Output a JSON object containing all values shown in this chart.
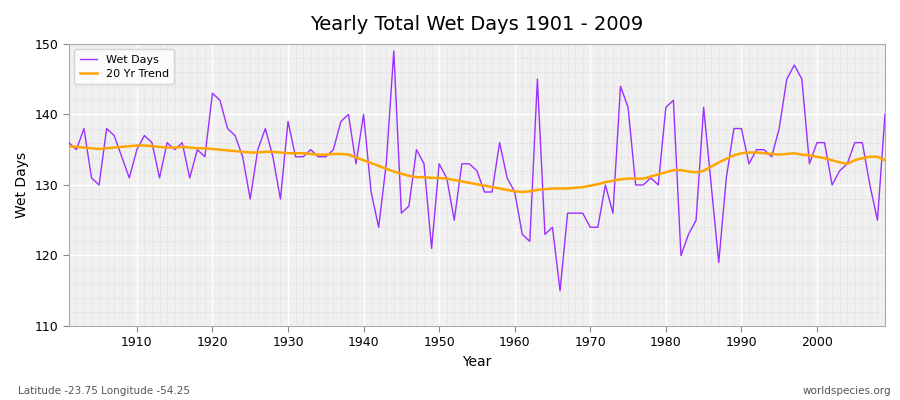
{
  "title": "Yearly Total Wet Days 1901 - 2009",
  "xlabel": "Year",
  "ylabel": "Wet Days",
  "xlim": [
    1901,
    2009
  ],
  "ylim": [
    110,
    150
  ],
  "yticks": [
    110,
    120,
    130,
    140,
    150
  ],
  "xticks": [
    1910,
    1920,
    1930,
    1940,
    1950,
    1960,
    1970,
    1980,
    1990,
    2000
  ],
  "wet_days_color": "#9B30FF",
  "trend_color": "#FFA500",
  "bg_color": "#FFFFFF",
  "plot_bg_color": "#F0F0F0",
  "grid_color": "#FFFFFF",
  "subtitle": "Latitude -23.75 Longitude -54.25",
  "watermark": "worldspecies.org",
  "years": [
    1901,
    1902,
    1903,
    1904,
    1905,
    1906,
    1907,
    1908,
    1909,
    1910,
    1911,
    1912,
    1913,
    1914,
    1915,
    1916,
    1917,
    1918,
    1919,
    1920,
    1921,
    1922,
    1923,
    1924,
    1925,
    1926,
    1927,
    1928,
    1929,
    1930,
    1931,
    1932,
    1933,
    1934,
    1935,
    1936,
    1937,
    1938,
    1939,
    1940,
    1941,
    1942,
    1943,
    1944,
    1945,
    1946,
    1947,
    1948,
    1949,
    1950,
    1951,
    1952,
    1953,
    1954,
    1955,
    1956,
    1957,
    1958,
    1959,
    1960,
    1961,
    1962,
    1963,
    1964,
    1965,
    1966,
    1967,
    1968,
    1969,
    1970,
    1971,
    1972,
    1973,
    1974,
    1975,
    1976,
    1977,
    1978,
    1979,
    1980,
    1981,
    1982,
    1983,
    1984,
    1985,
    1986,
    1987,
    1988,
    1989,
    1990,
    1991,
    1992,
    1993,
    1994,
    1995,
    1996,
    1997,
    1998,
    1999,
    2000,
    2001,
    2002,
    2003,
    2004,
    2005,
    2006,
    2007,
    2008,
    2009
  ],
  "wet_days": [
    136,
    135,
    138,
    131,
    130,
    138,
    137,
    134,
    131,
    135,
    137,
    136,
    131,
    136,
    135,
    136,
    131,
    135,
    134,
    143,
    142,
    138,
    137,
    134,
    128,
    135,
    138,
    134,
    128,
    139,
    134,
    134,
    135,
    134,
    134,
    135,
    139,
    140,
    133,
    140,
    129,
    124,
    133,
    149,
    126,
    127,
    135,
    133,
    121,
    133,
    131,
    125,
    133,
    133,
    132,
    129,
    129,
    136,
    131,
    129,
    123,
    122,
    145,
    123,
    124,
    115,
    126,
    126,
    126,
    124,
    124,
    130,
    126,
    144,
    141,
    130,
    130,
    131,
    130,
    141,
    142,
    120,
    123,
    125,
    141,
    130,
    119,
    131,
    138,
    138,
    133,
    135,
    135,
    134,
    138,
    145,
    147,
    145,
    133,
    136,
    136,
    130,
    132,
    133,
    136,
    136,
    130,
    125,
    140
  ],
  "trend": [
    135.5,
    135.4,
    135.3,
    135.2,
    135.1,
    135.2,
    135.3,
    135.4,
    135.5,
    135.6,
    135.6,
    135.5,
    135.4,
    135.3,
    135.3,
    135.4,
    135.3,
    135.2,
    135.2,
    135.1,
    135.0,
    134.9,
    134.8,
    134.7,
    134.6,
    134.6,
    134.7,
    134.7,
    134.6,
    134.5,
    134.5,
    134.5,
    134.4,
    134.3,
    134.3,
    134.4,
    134.4,
    134.3,
    133.9,
    133.5,
    133.1,
    132.7,
    132.3,
    131.9,
    131.6,
    131.3,
    131.1,
    131.1,
    131.0,
    131.0,
    130.9,
    130.7,
    130.5,
    130.3,
    130.1,
    129.9,
    129.7,
    129.5,
    129.3,
    129.1,
    129.0,
    129.1,
    129.3,
    129.4,
    129.5,
    129.5,
    129.5,
    129.6,
    129.7,
    129.9,
    130.1,
    130.4,
    130.6,
    130.8,
    130.9,
    130.9,
    130.9,
    131.2,
    131.5,
    131.8,
    132.1,
    132.1,
    131.9,
    131.8,
    132.0,
    132.6,
    133.2,
    133.7,
    134.2,
    134.5,
    134.6,
    134.6,
    134.5,
    134.4,
    134.3,
    134.4,
    134.5,
    134.3,
    134.2,
    134.0,
    133.8,
    133.5,
    133.2,
    133.0,
    133.5,
    133.8,
    134.0,
    134.0,
    133.5
  ]
}
